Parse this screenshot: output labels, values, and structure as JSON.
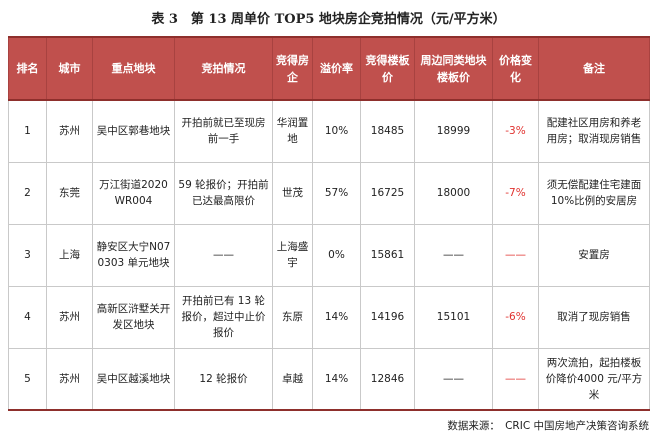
{
  "title": "表 3　第 13 周单价 TOP5 地块房企竞拍情况（元/平方米）",
  "headers": [
    "排名",
    "城市",
    "重点地块",
    "竞拍情况",
    "竞得房企",
    "溢价率",
    "竞得楼板价",
    "周边同类地块楼板价",
    "价格变化",
    "备注"
  ],
  "rows": [
    {
      "rank": "1",
      "city": "苏州",
      "plot": "吴中区郭巷地块",
      "auction": "开拍前就已至现房前一手",
      "company": "华润置地",
      "premium": "10%",
      "price": "18485",
      "nearby": "18999",
      "change": "-3%",
      "note": "配建社区用房和养老用房；取消现房销售"
    },
    {
      "rank": "2",
      "city": "东莞",
      "plot": "万江街道2020WR004",
      "auction": "59 轮报价；开拍前已达最高限价",
      "company": "世茂",
      "premium": "57%",
      "price": "16725",
      "nearby": "18000",
      "change": "-7%",
      "note": "须无偿配建住宅建面 10%比例的安居房"
    },
    {
      "rank": "3",
      "city": "上海",
      "plot": "静安区大宁N070303 单元地块",
      "auction": "——",
      "company": "上海盛宇",
      "premium": "0%",
      "price": "15861",
      "nearby": "——",
      "change": "——",
      "note": "安置房"
    },
    {
      "rank": "4",
      "city": "苏州",
      "plot": "高新区浒墅关开发区地块",
      "auction": "开拍前已有 13 轮报价，超过中止价报价",
      "company": "东原",
      "premium": "14%",
      "price": "14196",
      "nearby": "15101",
      "change": "-6%",
      "note": "取消了现房销售"
    },
    {
      "rank": "5",
      "city": "苏州",
      "plot": "吴中区越溪地块",
      "auction": "12 轮报价",
      "company": "卓越",
      "premium": "14%",
      "price": "12846",
      "nearby": "——",
      "change": "——",
      "note": "两次流拍，起拍楼板价降价4000 元/平方米"
    }
  ],
  "source": "数据来源：　CRIC 中国房地产决策咨询系统",
  "colors": {
    "header_bg": "#c0504d",
    "negative": "#e0312e"
  }
}
